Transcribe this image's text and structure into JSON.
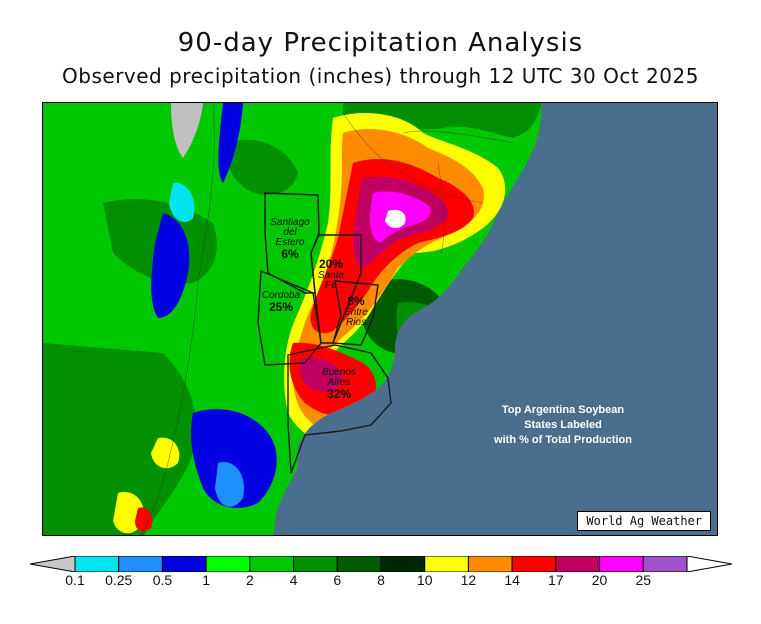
{
  "title": "90-day Precipitation Analysis",
  "subtitle": "Observed precipitation (inches) through 12 UTC 30 Oct 2025",
  "credit": "World Ag Weather",
  "note": {
    "line1": "Top Argentina Soybean",
    "line2": "States Labeled",
    "line3": "with % of Total Production"
  },
  "states": [
    {
      "name_line1": "Santiago",
      "name_line2": "del",
      "name_line3": "Estero",
      "share": "6%"
    },
    {
      "name_line1": "Santa",
      "name_line2": "Fe",
      "share": "20%"
    },
    {
      "name_line1": "Cordoba",
      "share": "25%"
    },
    {
      "name_line1": "Entre",
      "name_line2": "Rios",
      "share": "8%"
    },
    {
      "name_line1": "Buenos",
      "name_line2": "Aires",
      "share": "32%"
    }
  ],
  "legend": {
    "ticks": [
      "0.1",
      "0.25",
      "0.5",
      "1",
      "2",
      "4",
      "6",
      "8",
      "10",
      "12",
      "14",
      "17",
      "20",
      "25"
    ],
    "colors": [
      "#00e5ee",
      "#1e90ff",
      "#0000e0",
      "#00ff00",
      "#00c800",
      "#009000",
      "#005a00",
      "#002800",
      "#ffff00",
      "#ff8c00",
      "#ff0000",
      "#c00060",
      "#ff00ff",
      "#a050c8"
    ],
    "below_color": "#c8c8c8",
    "above_color": "#ffffff"
  },
  "colors": {
    "ocean": "#4a6f8e",
    "no_data": "#c0c0c0"
  }
}
